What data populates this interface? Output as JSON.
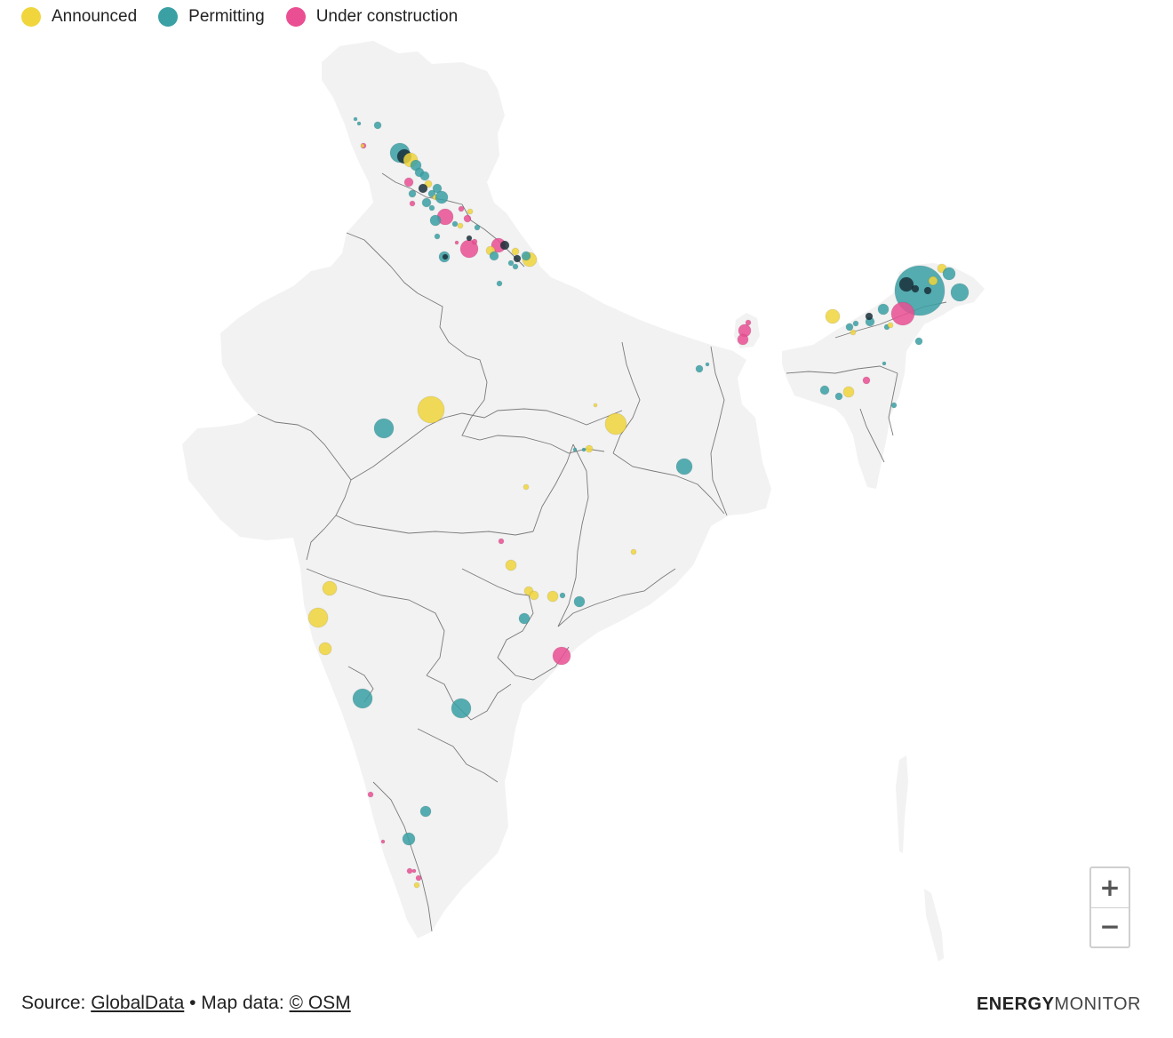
{
  "legend": {
    "items": [
      {
        "label": "Announced",
        "color": "#f0d53c"
      },
      {
        "label": "Permitting",
        "color": "#3aa0a4"
      },
      {
        "label": "Under construction",
        "color": "#ea4f93"
      }
    ]
  },
  "colors": {
    "land": "#f2f2f2",
    "border": "#7a7a7a",
    "announced": "#f0d53c",
    "permitting": "#3aa0a4",
    "under_construction": "#ea4f93"
  },
  "map": {
    "zoom_in_label": "+",
    "zoom_out_label": "−",
    "zoom_in_icon": "plus-icon",
    "zoom_out_icon": "minus-icon"
  },
  "footer": {
    "source_prefix": "Source: ",
    "source_link": "GlobalData",
    "separator": " • Map data: ",
    "map_link": "© OSM"
  },
  "brand": {
    "bold": "ENERGY",
    "light": "MONITOR"
  }
}
